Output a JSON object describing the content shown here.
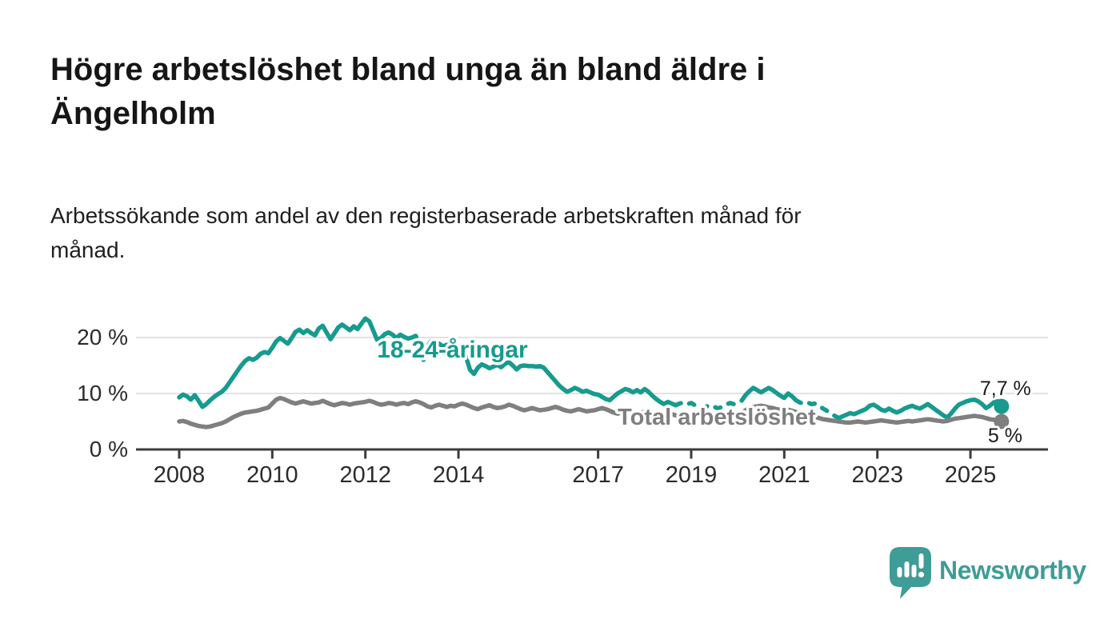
{
  "header": {
    "title": "Högre arbetslöshet bland unga än bland äldre i\nÄngelholm",
    "subtitle": "Arbetssökande som andel av den registerbaserade arbetskraften månad för\nmånad."
  },
  "colors": {
    "teal_line": "#169b8e",
    "gray_line": "#7f7f7f",
    "grid": "#d9d9d9",
    "axis": "#3c3c3c",
    "tick_text": "#2b2b2b",
    "annotation_text": "#1a1a1a",
    "logo_teal": "#3f9c96",
    "background": "#ffffff"
  },
  "chart_data": {
    "type": "line",
    "title": "Högre arbetslöshet bland unga än bland äldre i Ängelholm",
    "subtitle": "Arbetssökande som andel av den registerbaserade arbetskraften månad för månad.",
    "x_unit": "month",
    "x_start_year": 2008,
    "x_end_label_year": 2025.667,
    "xlim": [
      2007.05,
      2026.7
    ],
    "ylim": [
      0,
      25
    ],
    "grid": "horizontal",
    "gridline_values": [
      10,
      20
    ],
    "legend": "inline-labels",
    "y_ticks": [
      {
        "label": "0 %",
        "value": 0
      },
      {
        "label": "10 %",
        "value": 10
      },
      {
        "label": "20 %",
        "value": 20
      }
    ],
    "x_ticks": [
      {
        "label": "2008",
        "year": 2008
      },
      {
        "label": "2010",
        "year": 2010
      },
      {
        "label": "2012",
        "year": 2012
      },
      {
        "label": "2014",
        "year": 2014
      },
      {
        "label": "2017",
        "year": 2017
      },
      {
        "label": "2019",
        "year": 2019
      },
      {
        "label": "2021",
        "year": 2021
      },
      {
        "label": "2023",
        "year": 2023
      },
      {
        "label": "2025",
        "year": 2025
      }
    ],
    "series": [
      {
        "name": "18-24-åringar",
        "color": "#169b8e",
        "label": "18-24-åringar",
        "label_pos": {
          "year": 2012.25,
          "value": 16.4
        },
        "end_label": "7,7 %",
        "end_value": 7.7,
        "end_label_offset": [
          -27,
          -14
        ],
        "segments": [
          {
            "from": 0,
            "to": 128,
            "style": "solid"
          },
          {
            "from": 128,
            "to": 146,
            "style": "dashed"
          },
          {
            "from": 146,
            "to": 159,
            "style": "solid"
          },
          {
            "from": 159,
            "to": 169,
            "style": "dashed"
          },
          {
            "from": 169,
            "to": 212,
            "style": "solid"
          }
        ],
        "values": [
          9.3,
          9.8,
          9.5,
          8.9,
          9.7,
          8.7,
          7.6,
          8.1,
          8.8,
          9.4,
          9.9,
          10.3,
          11.0,
          12.0,
          13.0,
          14.0,
          15.0,
          15.8,
          16.3,
          16.0,
          16.4,
          17.1,
          17.4,
          17.2,
          18.2,
          19.3,
          19.9,
          19.4,
          18.9,
          19.9,
          21.0,
          21.4,
          20.8,
          21.3,
          20.8,
          20.4,
          21.6,
          22.1,
          20.9,
          19.7,
          20.7,
          21.8,
          22.3,
          21.8,
          21.3,
          22.0,
          21.5,
          22.5,
          23.4,
          22.9,
          21.3,
          19.6,
          19.9,
          20.6,
          20.9,
          20.5,
          19.9,
          20.5,
          20.1,
          19.8,
          20.0,
          20.3,
          18.2,
          16.0,
          18.4,
          19.4,
          19.2,
          18.9,
          18.4,
          18.7,
          18.4,
          18.0,
          17.6,
          17.8,
          16.4,
          14.2,
          13.5,
          14.6,
          15.2,
          14.9,
          14.5,
          14.8,
          15.1,
          14.7,
          15.3,
          15.6,
          15.0,
          14.3,
          14.9,
          15.0,
          14.9,
          14.9,
          14.8,
          14.9,
          14.6,
          13.8,
          13.0,
          12.2,
          11.4,
          10.8,
          10.3,
          10.6,
          11.0,
          10.7,
          10.3,
          10.5,
          10.2,
          9.9,
          9.8,
          9.4,
          9.0,
          8.8,
          9.4,
          10.0,
          10.4,
          10.8,
          10.6,
          10.2,
          10.6,
          10.2,
          10.8,
          10.3,
          9.6,
          9.0,
          8.5,
          8.1,
          8.5,
          8.2,
          7.9,
          8.2,
          8.4,
          8.1,
          8.3,
          7.9,
          7.5,
          7.3,
          7.7,
          7.9,
          7.6,
          7.3,
          7.7,
          8.0,
          8.3,
          8.1,
          8.4,
          8.7,
          9.7,
          10.4,
          11.0,
          10.6,
          10.2,
          10.6,
          11.0,
          10.6,
          10.1,
          9.6,
          9.2,
          10.0,
          9.5,
          8.8,
          8.4,
          8.2,
          8.4,
          8.1,
          8.2,
          7.8,
          7.3,
          6.9,
          6.4,
          6.0,
          5.6,
          5.9,
          6.2,
          6.5,
          6.3,
          6.6,
          6.9,
          7.2,
          7.8,
          8.0,
          7.6,
          7.1,
          6.9,
          7.3,
          6.9,
          6.6,
          6.9,
          7.3,
          7.6,
          7.8,
          7.5,
          7.3,
          7.7,
          8.1,
          7.6,
          7.1,
          6.6,
          6.1,
          5.7,
          6.4,
          7.3,
          8.0,
          8.3,
          8.6,
          8.8,
          8.9,
          8.6,
          8.1,
          7.4,
          7.8,
          8.4,
          8.6,
          7.7
        ]
      },
      {
        "name": "Total arbetslöshet",
        "color": "#7f7f7f",
        "label": "Total arbetslöshet",
        "label_pos": {
          "year": 2017.42,
          "value": 4.43
        },
        "end_label": "5 %",
        "end_value": 5.0,
        "end_label_offset": [
          -17,
          26
        ],
        "segments": [
          {
            "from": 0,
            "to": 212,
            "style": "solid"
          }
        ],
        "values": [
          5.0,
          5.1,
          4.9,
          4.6,
          4.4,
          4.2,
          4.1,
          4.0,
          4.1,
          4.3,
          4.5,
          4.7,
          5.0,
          5.4,
          5.8,
          6.1,
          6.4,
          6.6,
          6.7,
          6.8,
          6.9,
          7.1,
          7.3,
          7.5,
          8.2,
          8.9,
          9.2,
          9.0,
          8.7,
          8.4,
          8.2,
          8.4,
          8.6,
          8.4,
          8.2,
          8.3,
          8.4,
          8.7,
          8.4,
          8.1,
          7.9,
          8.1,
          8.3,
          8.2,
          8.0,
          8.2,
          8.3,
          8.4,
          8.5,
          8.7,
          8.5,
          8.2,
          8.0,
          8.1,
          8.3,
          8.2,
          8.0,
          8.2,
          8.3,
          8.1,
          8.4,
          8.6,
          8.4,
          8.1,
          7.7,
          7.5,
          7.8,
          8.0,
          7.8,
          7.6,
          7.8,
          7.7,
          8.0,
          8.2,
          8.0,
          7.7,
          7.4,
          7.2,
          7.5,
          7.7,
          7.9,
          7.6,
          7.4,
          7.5,
          7.7,
          8.0,
          7.8,
          7.5,
          7.2,
          7.0,
          7.2,
          7.4,
          7.2,
          7.0,
          7.1,
          7.2,
          7.4,
          7.6,
          7.4,
          7.1,
          6.9,
          6.8,
          7.0,
          7.2,
          7.0,
          6.8,
          6.9,
          7.0,
          7.2,
          7.4,
          7.2,
          6.9,
          6.6,
          6.4,
          6.6,
          6.8,
          6.6,
          6.4,
          6.5,
          6.6,
          6.7,
          6.8,
          6.6,
          6.3,
          6.1,
          6.0,
          6.2,
          6.3,
          6.1,
          6.0,
          6.1,
          6.2,
          6.3,
          6.4,
          6.2,
          6.0,
          5.9,
          5.8,
          6.0,
          6.1,
          6.0,
          5.9,
          6.0,
          6.1,
          6.3,
          6.5,
          7.0,
          7.4,
          7.6,
          7.7,
          7.8,
          7.7,
          7.5,
          7.4,
          7.2,
          7.1,
          7.0,
          7.1,
          6.9,
          6.7,
          6.5,
          6.3,
          6.2,
          6.0,
          5.8,
          5.6,
          5.4,
          5.3,
          5.2,
          5.1,
          5.0,
          4.9,
          4.8,
          4.8,
          4.9,
          5.0,
          4.9,
          4.8,
          4.9,
          5.0,
          5.1,
          5.2,
          5.1,
          5.0,
          4.9,
          4.8,
          4.9,
          5.0,
          5.1,
          5.0,
          5.1,
          5.2,
          5.3,
          5.4,
          5.3,
          5.2,
          5.1,
          5.0,
          5.1,
          5.3,
          5.5,
          5.6,
          5.7,
          5.8,
          5.9,
          6.0,
          5.9,
          5.8,
          5.6,
          5.4,
          5.3,
          5.2,
          5.0
        ]
      }
    ]
  },
  "logo": {
    "text": "Newsworthy"
  }
}
